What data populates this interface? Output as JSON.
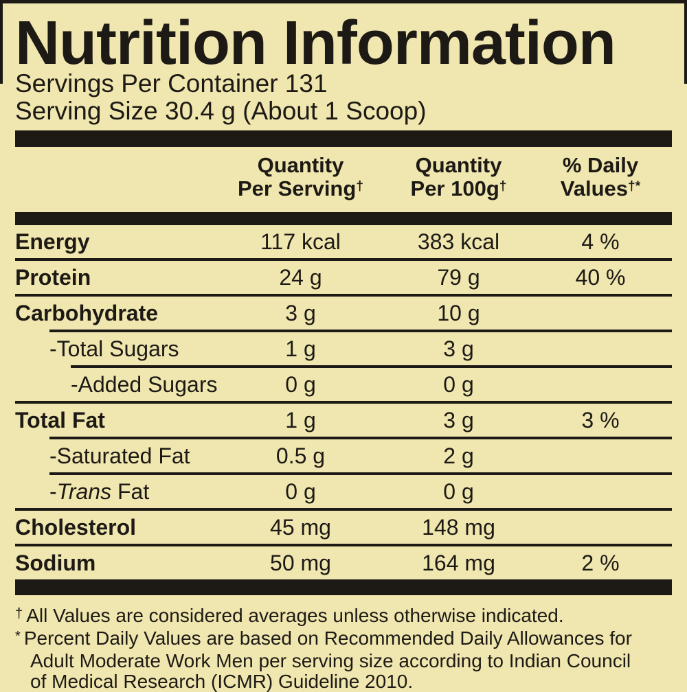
{
  "label": {
    "title": "Nutrition Information",
    "servings_per_container": "Servings Per Container 131",
    "serving_size": "Serving Size 30.4 g (About 1 Scoop)"
  },
  "colors": {
    "background": "#f0e6af",
    "ink": "#1d1a15"
  },
  "table": {
    "headers": [
      {
        "line1": "Quantity",
        "line2": "Per Serving",
        "sup": "†"
      },
      {
        "line1": "Quantity",
        "line2": "Per 100g",
        "sup": "†"
      },
      {
        "line1": "% Daily",
        "line2": "Values",
        "sup": "†*"
      }
    ],
    "rows": [
      {
        "name": "Energy",
        "per_serving": "117 kcal",
        "per_100g": "383 kcal",
        "daily_value": "4 %"
      },
      {
        "name": "Protein",
        "per_serving": "24 g",
        "per_100g": "79 g",
        "daily_value": "40 %"
      },
      {
        "name": "Carbohydrate",
        "per_serving": "3 g",
        "per_100g": "10 g"
      },
      {
        "name": "-Total Sugars",
        "per_serving": "1 g",
        "per_100g": "3 g"
      },
      {
        "name": "-Added Sugars",
        "per_serving": "0 g",
        "per_100g": "0 g"
      },
      {
        "name": "Total Fat",
        "per_serving": "1 g",
        "per_100g": "3 g",
        "daily_value": "3 %"
      },
      {
        "name": "-Saturated Fat",
        "per_serving": "0.5 g",
        "per_100g": "2 g"
      },
      {
        "name_prefix": "-",
        "name_italic": "Trans",
        "name_rest": " Fat",
        "per_serving": "0 g",
        "per_100g": "0 g"
      },
      {
        "name": "Cholesterol",
        "per_serving": "45 mg",
        "per_100g": "148 mg"
      },
      {
        "name": "Sodium",
        "per_serving": "50 mg",
        "per_100g": "164 mg",
        "daily_value": "2 %"
      }
    ]
  },
  "footnotes": {
    "dagger": {
      "marker": "†",
      "text": "All Values are considered averages unless otherwise indicated."
    },
    "asterisk": {
      "marker": "*",
      "line1": "Percent Daily Values are based on Recommended Daily Allowances for",
      "line2": "Adult Moderate Work Men per serving size according to Indian Council",
      "line3": "of Medical Research (ICMR) Guideline 2010."
    }
  }
}
